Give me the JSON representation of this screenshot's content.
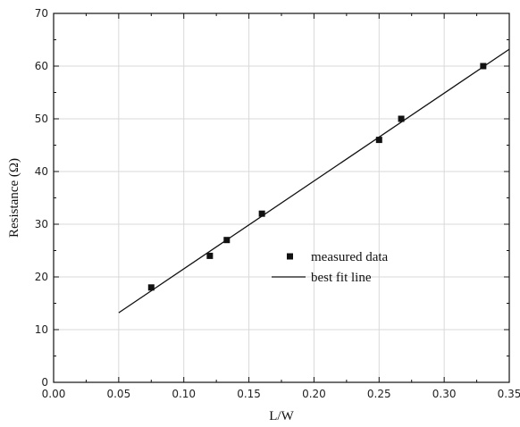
{
  "chart_data": {
    "type": "scatter",
    "title": "",
    "xlabel": "L/W",
    "ylabel": "Resistance (Ω)",
    "xlim": [
      0.0,
      0.35
    ],
    "ylim": [
      0,
      70
    ],
    "xticks": [
      "0.00",
      "0.05",
      "0.10",
      "0.15",
      "0.20",
      "0.25",
      "0.30",
      "0.35"
    ],
    "yticks": [
      "0",
      "10",
      "20",
      "30",
      "40",
      "50",
      "60",
      "70"
    ],
    "grid": true,
    "legend_position": "center-right",
    "series": [
      {
        "name": "measured data",
        "kind": "scatter",
        "marker": "square",
        "x": [
          0.075,
          0.12,
          0.133,
          0.16,
          0.25,
          0.267,
          0.33
        ],
        "y": [
          18,
          24,
          27,
          32,
          46,
          50,
          60
        ]
      },
      {
        "name": "best fit line",
        "kind": "line",
        "x": [
          0.05,
          0.35
        ],
        "y": [
          13.2,
          63.2
        ]
      }
    ]
  }
}
